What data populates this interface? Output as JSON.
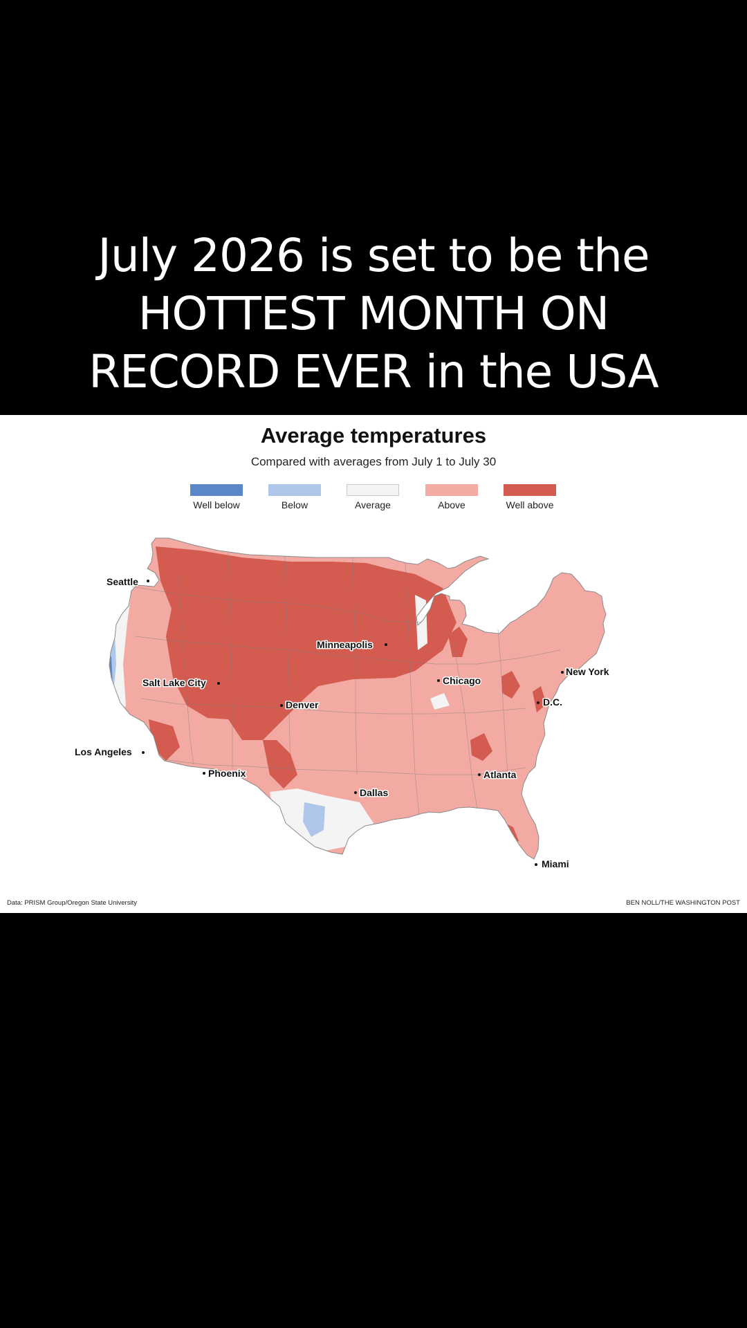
{
  "headline": {
    "line1": "July 2026 is set to be the",
    "line2": "HOTTEST MONTH ON",
    "line3": "RECORD EVER in the USA"
  },
  "map": {
    "title": "Average temperatures",
    "subtitle": "Compared with averages from July 1 to July 30",
    "legend": [
      {
        "label": "Well below",
        "color": "#5b86c7"
      },
      {
        "label": "Below",
        "color": "#aec6ea"
      },
      {
        "label": "Average",
        "color": "#f4f4f4"
      },
      {
        "label": "Above",
        "color": "#f2aaa3"
      },
      {
        "label": "Well above",
        "color": "#d35b4f"
      }
    ],
    "cities": [
      {
        "name": "Seattle"
      },
      {
        "name": "Minneapolis"
      },
      {
        "name": "Salt Lake City"
      },
      {
        "name": "Chicago"
      },
      {
        "name": "New York"
      },
      {
        "name": "Denver"
      },
      {
        "name": "D.C."
      },
      {
        "name": "Los Angeles"
      },
      {
        "name": "Phoenix"
      },
      {
        "name": "Atlanta"
      },
      {
        "name": "Dallas"
      },
      {
        "name": "Miami"
      }
    ],
    "source": "Data: PRISM Group/Oregon State University",
    "credit": "BEN NOLL/THE WASHINGTON POST"
  }
}
